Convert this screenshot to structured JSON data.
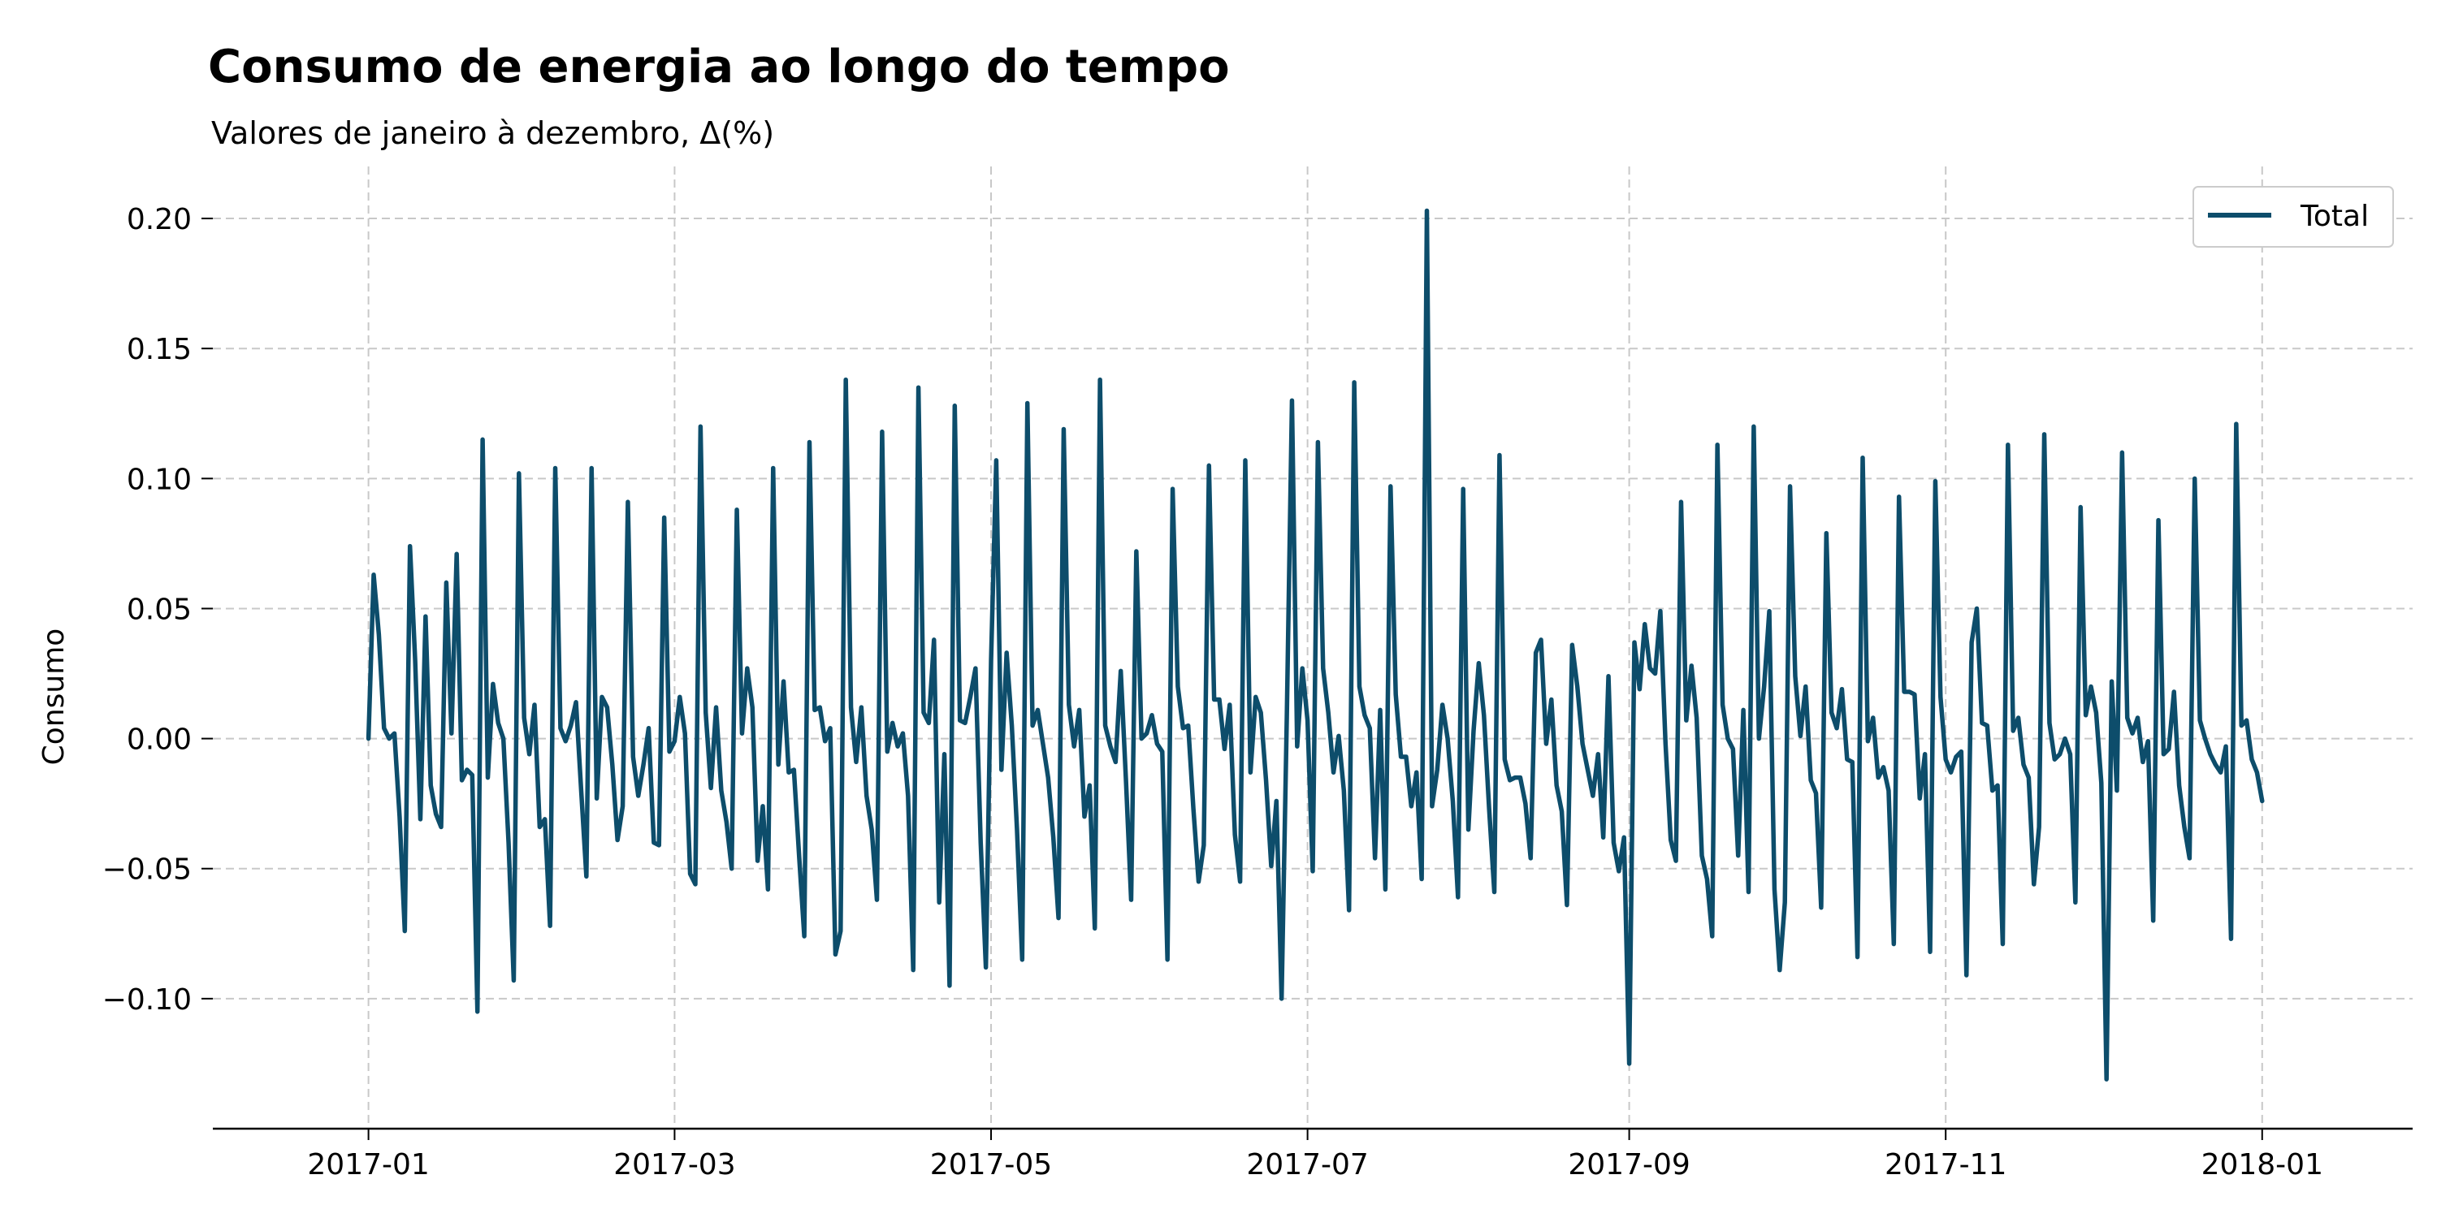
{
  "chart_data": {
    "type": "line",
    "title": "Consumo de energia ao longo do tempo",
    "subtitle": "Valores de janeiro à dezembro, Δ(%)",
    "xlabel": "",
    "ylabel": "Consumo",
    "x_start": "2017-01-01",
    "x_end": "2017-12-31",
    "xlim": [
      "2016-12-02",
      "2018-01-30"
    ],
    "ylim": [
      -0.15,
      0.22
    ],
    "x_ticks": [
      {
        "date": "2017-01-01",
        "label": "2017-01"
      },
      {
        "date": "2017-03-01",
        "label": "2017-03"
      },
      {
        "date": "2017-05-01",
        "label": "2017-05"
      },
      {
        "date": "2017-07-01",
        "label": "2017-07"
      },
      {
        "date": "2017-09-01",
        "label": "2017-09"
      },
      {
        "date": "2017-11-01",
        "label": "2017-11"
      },
      {
        "date": "2018-01-01",
        "label": "2018-01"
      }
    ],
    "y_ticks": [
      {
        "value": 0.2,
        "label": "0.20"
      },
      {
        "value": 0.15,
        "label": "0.15"
      },
      {
        "value": 0.1,
        "label": "0.10"
      },
      {
        "value": 0.05,
        "label": "0.05"
      },
      {
        "value": 0.0,
        "label": "0.00"
      },
      {
        "value": -0.05,
        "label": "−0.05"
      },
      {
        "value": -0.1,
        "label": "−0.10"
      }
    ],
    "grid": true,
    "legend_position": "top-right",
    "series": [
      {
        "name": "Total",
        "color": "#0d4d6b",
        "values": [
          0.0,
          0.063,
          0.04,
          0.004,
          0.0,
          0.002,
          -0.03,
          -0.074,
          0.074,
          0.03,
          -0.031,
          0.047,
          -0.018,
          -0.029,
          -0.034,
          0.06,
          0.002,
          0.071,
          -0.016,
          -0.012,
          -0.014,
          -0.105,
          0.115,
          -0.015,
          0.021,
          0.006,
          0.0,
          -0.04,
          -0.093,
          0.102,
          0.008,
          -0.006,
          0.013,
          -0.034,
          -0.031,
          -0.072,
          0.104,
          0.004,
          -0.001,
          0.005,
          0.014,
          -0.02,
          -0.053,
          0.104,
          -0.023,
          0.016,
          0.012,
          -0.01,
          -0.039,
          -0.026,
          0.091,
          -0.007,
          -0.022,
          -0.01,
          0.004,
          -0.04,
          -0.041,
          0.085,
          -0.005,
          -0.001,
          0.016,
          0.002,
          -0.052,
          -0.056,
          0.12,
          0.01,
          -0.019,
          0.012,
          -0.02,
          -0.032,
          -0.05,
          0.088,
          0.002,
          0.027,
          0.012,
          -0.047,
          -0.026,
          -0.058,
          0.104,
          -0.01,
          0.022,
          -0.013,
          -0.012,
          -0.045,
          -0.076,
          0.114,
          0.011,
          0.012,
          -0.001,
          0.004,
          -0.083,
          -0.074,
          0.138,
          0.012,
          -0.009,
          0.012,
          -0.022,
          -0.035,
          -0.062,
          0.118,
          -0.005,
          0.006,
          -0.003,
          0.002,
          -0.022,
          -0.089,
          0.135,
          0.01,
          0.006,
          0.038,
          -0.063,
          -0.006,
          -0.095,
          0.128,
          0.007,
          0.006,
          0.016,
          0.027,
          -0.04,
          -0.088,
          0.03,
          0.107,
          -0.012,
          0.033,
          0.005,
          -0.035,
          -0.085,
          0.129,
          0.005,
          0.011,
          -0.002,
          -0.015,
          -0.038,
          -0.069,
          0.119,
          0.013,
          -0.003,
          0.011,
          -0.03,
          -0.018,
          -0.073,
          0.138,
          0.005,
          -0.003,
          -0.009,
          0.026,
          -0.016,
          -0.062,
          0.072,
          0.0,
          0.002,
          0.009,
          -0.002,
          -0.005,
          -0.085,
          0.096,
          0.02,
          0.004,
          0.005,
          -0.027,
          -0.055,
          -0.041,
          0.105,
          0.015,
          0.015,
          -0.004,
          0.013,
          -0.037,
          -0.055,
          0.107,
          -0.013,
          0.016,
          0.01,
          -0.016,
          -0.049,
          -0.024,
          -0.1,
          0.008,
          0.13,
          -0.003,
          0.027,
          0.007,
          -0.051,
          0.114,
          0.027,
          0.01,
          -0.013,
          0.001,
          -0.02,
          -0.066,
          0.137,
          0.02,
          0.009,
          0.004,
          -0.046,
          0.011,
          -0.058,
          0.097,
          0.017,
          -0.007,
          -0.007,
          -0.026,
          -0.013,
          -0.054,
          0.203,
          -0.026,
          -0.012,
          0.013,
          0.0,
          -0.024,
          -0.061,
          0.096,
          -0.035,
          0.003,
          0.029,
          0.009,
          -0.027,
          -0.059,
          0.109,
          -0.008,
          -0.016,
          -0.015,
          -0.015,
          -0.025,
          -0.046,
          0.033,
          0.038,
          -0.002,
          0.015,
          -0.018,
          -0.028,
          -0.064,
          0.036,
          0.02,
          -0.002,
          -0.012,
          -0.022,
          -0.006,
          -0.038,
          0.024,
          -0.04,
          -0.051,
          -0.038,
          -0.125,
          0.037,
          0.019,
          0.044,
          0.027,
          0.025,
          0.049,
          -0.002,
          -0.039,
          -0.047,
          0.091,
          0.007,
          0.028,
          0.008,
          -0.045,
          -0.054,
          -0.076,
          0.113,
          0.013,
          0.0,
          -0.004,
          -0.045,
          0.011,
          -0.059,
          0.12,
          0.0,
          0.02,
          0.049,
          -0.058,
          -0.089,
          -0.063,
          0.097,
          0.024,
          0.001,
          0.02,
          -0.016,
          -0.021,
          -0.065,
          0.079,
          0.01,
          0.004,
          0.019,
          -0.008,
          -0.009,
          -0.084,
          0.108,
          -0.001,
          0.008,
          -0.015,
          -0.011,
          -0.02,
          -0.079,
          0.093,
          0.018,
          0.018,
          0.017,
          -0.023,
          -0.006,
          -0.082,
          0.099,
          0.016,
          -0.008,
          -0.013,
          -0.007,
          -0.005,
          -0.091,
          0.037,
          0.05,
          0.006,
          0.005,
          -0.02,
          -0.018,
          -0.079,
          0.113,
          0.003,
          0.008,
          -0.01,
          -0.015,
          -0.056,
          -0.034,
          0.117,
          0.006,
          -0.008,
          -0.006,
          0.0,
          -0.006,
          -0.063,
          0.089,
          0.009,
          0.02,
          0.01,
          -0.017,
          -0.131,
          0.022,
          -0.02,
          0.11,
          0.008,
          0.002,
          0.008,
          -0.009,
          -0.001,
          -0.07,
          0.084,
          -0.006,
          -0.004,
          0.018,
          -0.018,
          -0.034,
          -0.046,
          0.1,
          0.007,
          0.0,
          -0.006,
          -0.01,
          -0.013,
          -0.003,
          -0.077,
          0.121,
          0.005,
          0.007,
          -0.008,
          -0.013,
          -0.024
        ]
      }
    ]
  }
}
